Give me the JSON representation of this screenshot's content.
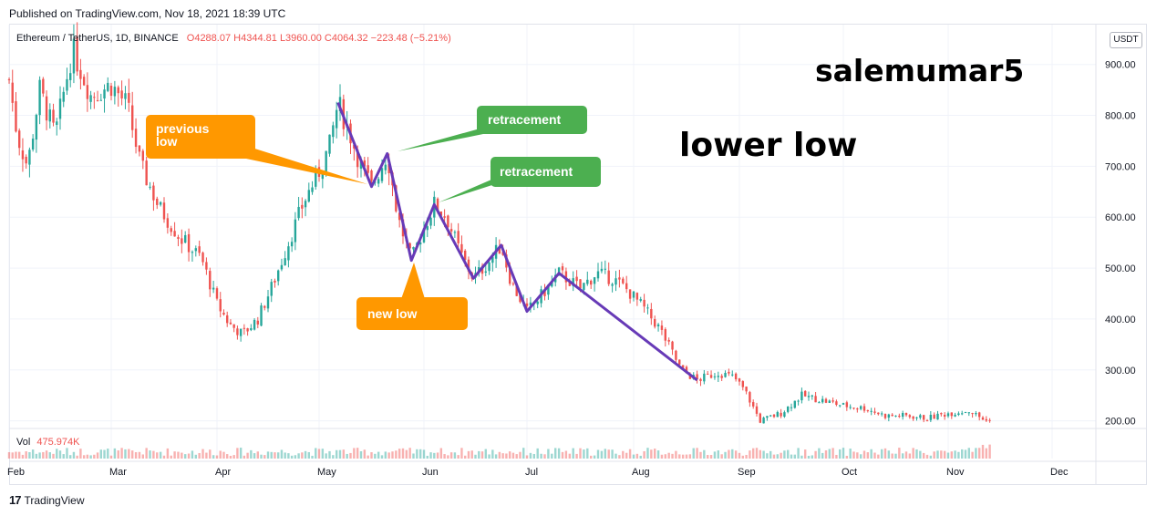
{
  "header": {
    "published": "Published on TradingView.com, Nov 18, 2021 18:39 UTC"
  },
  "legend": {
    "symbol": "Ethereum / TetherUS, 1D, BINANCE",
    "open": "O4288.07",
    "high": "H4344.81",
    "low": "L3960.00",
    "close": "C4064.32",
    "change": "−223.48 (−5.21%)"
  },
  "currency_button": "USDT",
  "volume": {
    "label": "Vol",
    "value": "475.974K"
  },
  "footer": {
    "logo": "17",
    "brand": "TradingView"
  },
  "annotations": {
    "watermark": "salemumar5",
    "headline": "lower low",
    "previous_low": "previous low",
    "new_low": "new low",
    "retracement_1": "retracement",
    "retracement_2": "retracement"
  },
  "colors": {
    "up": "#26a69a",
    "down": "#ef5350",
    "trend_line": "#673ab7",
    "callout_orange": "#ff9800",
    "callout_green": "#4caf50",
    "grid": "#f0f3fa"
  },
  "chart_data": {
    "type": "candlestick",
    "instrument": "Ethereum / TetherUS",
    "timeframe": "1D",
    "exchange": "BINANCE",
    "ylim": [
      185,
      955
    ],
    "y_ticks": [
      900,
      800,
      700,
      600,
      500,
      400,
      300,
      200
    ],
    "y_tick_labels": [
      "900.00",
      "800.00",
      "700.00",
      "600.00",
      "500.00",
      "400.00",
      "300.00",
      "200.00"
    ],
    "x_ticks": [
      "Feb",
      "Mar",
      "Apr",
      "May",
      "Jun",
      "Jul",
      "Aug",
      "Sep",
      "Oct",
      "Nov",
      "Dec"
    ],
    "grid": true,
    "price_path": [
      {
        "month": 0.0,
        "price": 870
      },
      {
        "month": 0.08,
        "price": 760
      },
      {
        "month": 0.18,
        "price": 700
      },
      {
        "month": 0.3,
        "price": 850
      },
      {
        "month": 0.45,
        "price": 760
      },
      {
        "month": 0.62,
        "price": 930
      },
      {
        "month": 0.8,
        "price": 840
      },
      {
        "month": 1.0,
        "price": 860
      },
      {
        "month": 1.15,
        "price": 820
      },
      {
        "month": 1.28,
        "price": 700
      },
      {
        "month": 1.45,
        "price": 620
      },
      {
        "month": 1.65,
        "price": 560
      },
      {
        "month": 1.85,
        "price": 520
      },
      {
        "month": 2.0,
        "price": 430
      },
      {
        "month": 2.12,
        "price": 390
      },
      {
        "month": 2.25,
        "price": 370
      },
      {
        "month": 2.4,
        "price": 400
      },
      {
        "month": 2.55,
        "price": 470
      },
      {
        "month": 2.7,
        "price": 550
      },
      {
        "month": 2.85,
        "price": 630
      },
      {
        "month": 3.0,
        "price": 690
      },
      {
        "month": 3.1,
        "price": 740
      },
      {
        "month": 3.18,
        "price": 825
      },
      {
        "month": 3.3,
        "price": 760
      },
      {
        "month": 3.4,
        "price": 700
      },
      {
        "month": 3.5,
        "price": 660
      },
      {
        "month": 3.65,
        "price": 725
      },
      {
        "month": 3.75,
        "price": 600
      },
      {
        "month": 3.88,
        "price": 515
      },
      {
        "month": 3.98,
        "price": 570
      },
      {
        "month": 4.1,
        "price": 625
      },
      {
        "month": 4.22,
        "price": 600
      },
      {
        "month": 4.35,
        "price": 530
      },
      {
        "month": 4.48,
        "price": 480
      },
      {
        "month": 4.62,
        "price": 510
      },
      {
        "month": 4.75,
        "price": 545
      },
      {
        "month": 4.85,
        "price": 470
      },
      {
        "month": 5.0,
        "price": 415
      },
      {
        "month": 5.15,
        "price": 450
      },
      {
        "month": 5.3,
        "price": 490
      },
      {
        "month": 5.5,
        "price": 460
      },
      {
        "month": 5.65,
        "price": 490
      },
      {
        "month": 5.8,
        "price": 480
      },
      {
        "month": 5.95,
        "price": 455
      },
      {
        "month": 6.1,
        "price": 420
      },
      {
        "month": 6.25,
        "price": 380
      },
      {
        "month": 6.45,
        "price": 300
      },
      {
        "month": 6.6,
        "price": 280
      },
      {
        "month": 6.8,
        "price": 295
      },
      {
        "month": 6.95,
        "price": 285
      },
      {
        "month": 7.05,
        "price": 260
      },
      {
        "month": 7.2,
        "price": 200
      },
      {
        "month": 7.4,
        "price": 215
      },
      {
        "month": 7.6,
        "price": 250
      },
      {
        "month": 7.8,
        "price": 240
      },
      {
        "month": 8.0,
        "price": 230
      },
      {
        "month": 8.2,
        "price": 225
      },
      {
        "month": 8.4,
        "price": 210
      },
      {
        "month": 8.6,
        "price": 210
      },
      {
        "month": 8.8,
        "price": 205
      },
      {
        "month": 9.0,
        "price": 215
      },
      {
        "month": 9.2,
        "price": 220
      },
      {
        "month": 9.4,
        "price": 195
      }
    ],
    "trend_line": [
      {
        "month": 3.18,
        "price": 825
      },
      {
        "month": 3.5,
        "price": 660
      },
      {
        "month": 3.65,
        "price": 725
      },
      {
        "month": 3.88,
        "price": 515
      },
      {
        "month": 4.1,
        "price": 625
      },
      {
        "month": 4.48,
        "price": 480
      },
      {
        "month": 4.75,
        "price": 545
      },
      {
        "month": 5.0,
        "price": 415
      },
      {
        "month": 5.3,
        "price": 490
      },
      {
        "month": 6.6,
        "price": 280
      }
    ]
  }
}
